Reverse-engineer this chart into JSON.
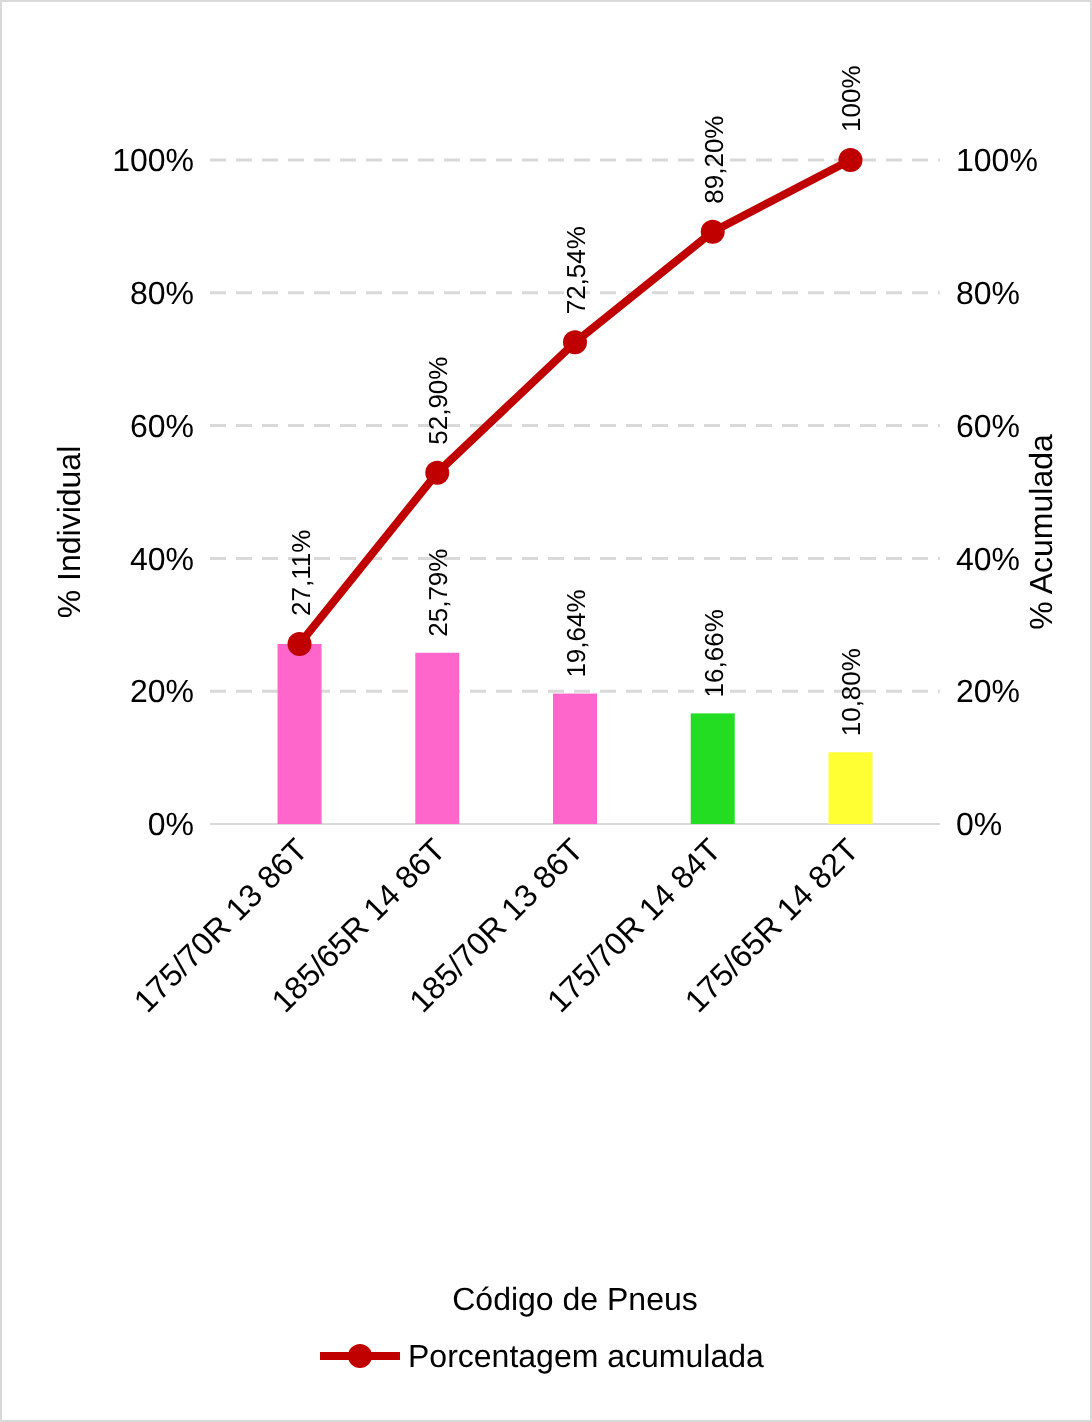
{
  "chart_data": {
    "type": "bar",
    "annotations": [
      "Código de Pneus"
    ],
    "ylabel": "% Individual",
    "y2label": "% Acumulada",
    "categories": [
      "175/70R 13 86T",
      "185/65R 14 86T",
      "185/70R 13 86T",
      "175/70R 14 84T",
      "175/65R 14 82T"
    ],
    "series": [
      {
        "colors": [
          "#ff66cc",
          "#ff66cc",
          "#ff66cc",
          "#22dd22",
          "#ffff33"
        ],
        "values": [
          27.11,
          25.79,
          19.64,
          16.66,
          10.8
        ],
        "value_labels": [
          null,
          "25,79%",
          "19,64%",
          "16,66%",
          "10,80%"
        ]
      },
      {
        "type": "line",
        "name": "Porcentagem acumulada",
        "color": "#c00000",
        "axis": "y2",
        "marker": "circle",
        "values": [
          27.11,
          52.9,
          72.54,
          89.2,
          100
        ],
        "value_labels": [
          "27,11%",
          "52,90%",
          "72,54%",
          "89,20%",
          "100%"
        ]
      }
    ],
    "ylim": [
      0,
      100
    ],
    "yticks": [
      {
        "value": 0,
        "label": "0%"
      },
      {
        "value": 20,
        "label": "20%"
      },
      {
        "value": 40,
        "label": "40%"
      },
      {
        "value": 60,
        "label": "60%"
      },
      {
        "value": 80,
        "label": "80%"
      },
      {
        "value": 100,
        "label": "100%"
      }
    ],
    "y2lim": [
      0,
      100
    ],
    "y2ticks": [
      {
        "value": 0,
        "label": "0%"
      },
      {
        "value": 20,
        "label": "20%"
      },
      {
        "value": 40,
        "label": "40%"
      },
      {
        "value": 60,
        "label": "60%"
      },
      {
        "value": 80,
        "label": "80%"
      },
      {
        "value": 100,
        "label": "100%"
      }
    ],
    "grid": "y",
    "legend": "bottom"
  }
}
